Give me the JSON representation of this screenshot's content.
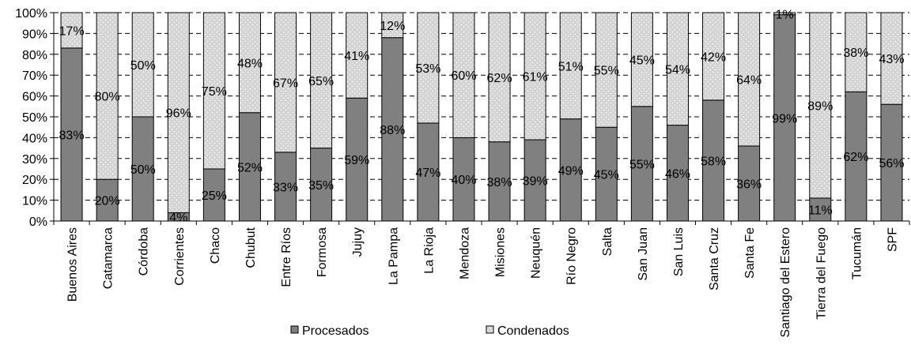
{
  "chart_data": {
    "type": "bar",
    "stacked": true,
    "percent": true,
    "grid": true,
    "legend_position": "bottom",
    "categories": [
      "Buenos Aires",
      "Catamarca",
      "Córdoba",
      "Corrientes",
      "Chaco",
      "Chubut",
      "Entre Ríos",
      "Formosa",
      "Jujuy",
      "La Pampa",
      "La Rioja",
      "Mendoza",
      "Misiones",
      "Neuquén",
      "Río Negro",
      "Salta",
      "San Juan",
      "San Luis",
      "Santa Cruz",
      "Santa Fe",
      "Santiago del Estero",
      "Tierra del Fuego",
      "Tucumán",
      "SPF"
    ],
    "series": [
      {
        "name": "Procesados",
        "color": "#808080",
        "values": [
          83,
          20,
          50,
          4,
          25,
          52,
          33,
          35,
          59,
          88,
          47,
          40,
          38,
          39,
          49,
          45,
          55,
          46,
          58,
          36,
          99,
          11,
          62,
          56
        ]
      },
      {
        "name": "Condenados",
        "color": "#d4d4d4",
        "values": [
          17,
          80,
          50,
          96,
          75,
          48,
          67,
          65,
          41,
          12,
          53,
          60,
          62,
          61,
          51,
          55,
          45,
          54,
          42,
          64,
          1,
          89,
          38,
          43
        ]
      }
    ],
    "ylim": [
      0,
      100
    ],
    "ytick_labels": [
      "0%",
      "10%",
      "20%",
      "30%",
      "40%",
      "50%",
      "60%",
      "70%",
      "80%",
      "90%",
      "100%"
    ],
    "value_suffix": "%"
  }
}
